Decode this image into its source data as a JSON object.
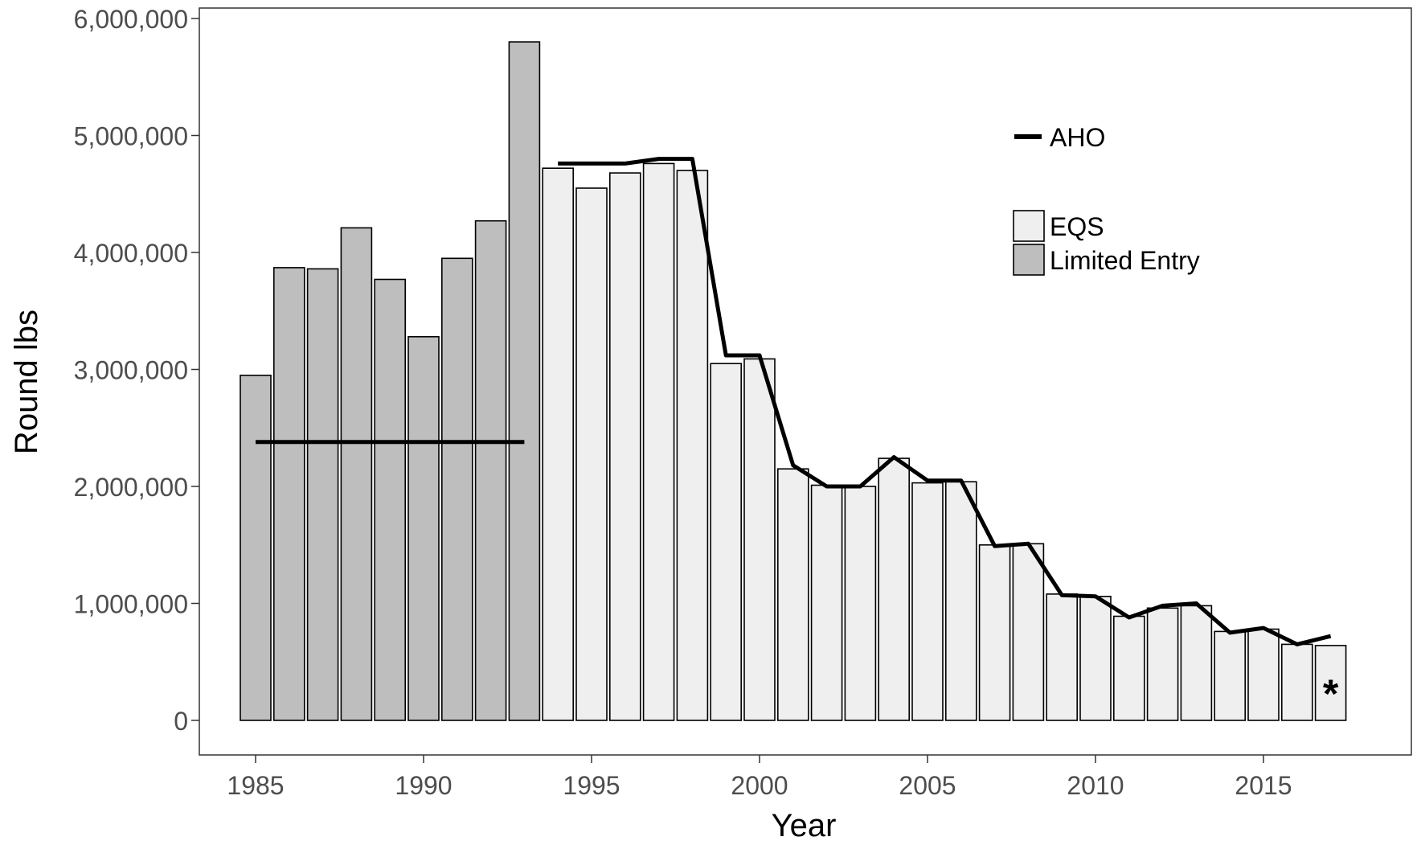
{
  "chart_data": {
    "type": "bar",
    "xlabel": "Year",
    "ylabel": "Round lbs",
    "xlim": [
      1984,
      2018
    ],
    "ylim": [
      0,
      6000000
    ],
    "x_ticks": [
      1985,
      1990,
      1995,
      2000,
      2005,
      2010,
      2015
    ],
    "x_tick_labels": [
      "1985",
      "1990",
      "1995",
      "2000",
      "2005",
      "2010",
      "2015"
    ],
    "y_ticks": [
      0,
      1000000,
      2000000,
      3000000,
      4000000,
      5000000,
      6000000
    ],
    "y_tick_labels": [
      "0",
      "1,000,000",
      "2,000,000",
      "3,000,000",
      "4,000,000",
      "5,000,000",
      "6,000,000"
    ],
    "grid": false,
    "legend_position": "top-right",
    "series": [
      {
        "name": "Limited Entry",
        "kind": "bar",
        "color": "#bebebe",
        "x": [
          1985,
          1986,
          1987,
          1988,
          1989,
          1990,
          1991,
          1992,
          1993
        ],
        "values": [
          2950000,
          3870000,
          3860000,
          4210000,
          3770000,
          3280000,
          3950000,
          4270000,
          5800000
        ]
      },
      {
        "name": "EQS",
        "kind": "bar",
        "color": "#efefef",
        "x": [
          1994,
          1995,
          1996,
          1997,
          1998,
          1999,
          2000,
          2001,
          2002,
          2003,
          2004,
          2005,
          2006,
          2007,
          2008,
          2009,
          2010,
          2011,
          2012,
          2013,
          2014,
          2015,
          2016,
          2017
        ],
        "values": [
          4720000,
          4550000,
          4680000,
          4760000,
          4700000,
          3050000,
          3090000,
          2150000,
          2010000,
          2000000,
          2240000,
          2030000,
          2040000,
          1500000,
          1510000,
          1080000,
          1060000,
          890000,
          960000,
          980000,
          760000,
          780000,
          650000,
          640000
        ]
      },
      {
        "name": "AHO",
        "kind": "line",
        "color": "#000000",
        "segments": [
          {
            "x": [
              1985,
              1993
            ],
            "y": [
              2380000,
              2380000
            ]
          },
          {
            "x": [
              1994,
              1995,
              1996,
              1997,
              1998,
              1999,
              2000,
              2001,
              2002,
              2003,
              2004,
              2005,
              2006,
              2007,
              2008,
              2009,
              2010,
              2011,
              2012,
              2013,
              2014,
              2015,
              2016,
              2017
            ],
            "y": [
              4760000,
              4760000,
              4760000,
              4800000,
              4800000,
              3120000,
              3120000,
              2180000,
              2000000,
              2000000,
              2250000,
              2050000,
              2050000,
              1490000,
              1510000,
              1070000,
              1060000,
              880000,
              980000,
              1000000,
              750000,
              790000,
              650000,
              720000
            ]
          }
        ]
      }
    ],
    "legend": {
      "line_entries": [
        "AHO"
      ],
      "fill_entries": [
        {
          "label": "EQS",
          "color": "#efefef"
        },
        {
          "label": "Limited Entry",
          "color": "#bebebe"
        }
      ]
    },
    "annotations": [
      {
        "text": "*",
        "x": 2017
      }
    ]
  }
}
